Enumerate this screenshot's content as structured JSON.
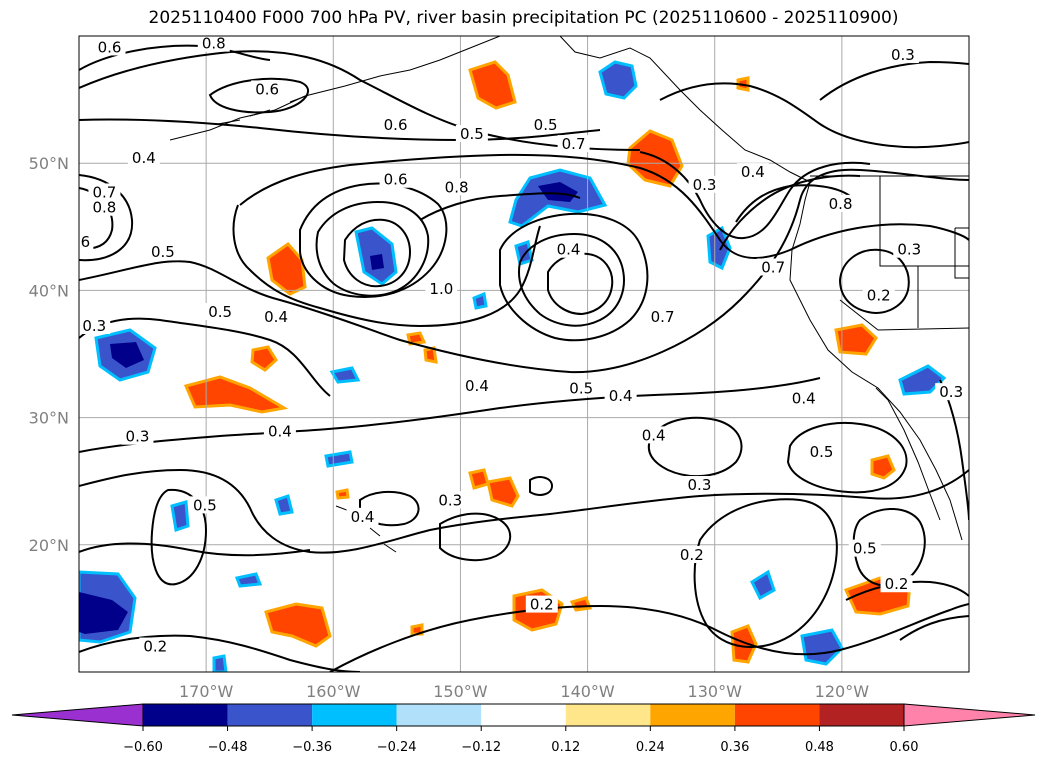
{
  "title": "2025110400 F000 700 hPa PV, river basin precipitation PC (2025110600 - 2025110900)",
  "map": {
    "lon_range": [
      -180,
      -110
    ],
    "lat_range": [
      10,
      60
    ],
    "lon_ticks": [
      {
        "value": -170,
        "label": "170°W"
      },
      {
        "value": -160,
        "label": "160°W"
      },
      {
        "value": -150,
        "label": "150°W"
      },
      {
        "value": -140,
        "label": "140°W"
      },
      {
        "value": -130,
        "label": "130°W"
      },
      {
        "value": -120,
        "label": "120°W"
      }
    ],
    "lat_ticks": [
      {
        "value": 50,
        "label": "50°N"
      },
      {
        "value": 40,
        "label": "40°N"
      },
      {
        "value": 30,
        "label": "30°N"
      },
      {
        "value": 20,
        "label": "20°N"
      }
    ],
    "grid": true,
    "contour_labels": [
      {
        "text": "0.6",
        "lon": -177.6,
        "lat": 59.1
      },
      {
        "text": "0.8",
        "lon": -169.4,
        "lat": 59.4
      },
      {
        "text": "0.6",
        "lon": -165.2,
        "lat": 55.8
      },
      {
        "text": "0.6",
        "lon": -155.1,
        "lat": 53.0
      },
      {
        "text": "0.5",
        "lon": -149.1,
        "lat": 52.3
      },
      {
        "text": "0.5",
        "lon": -143.3,
        "lat": 53.0
      },
      {
        "text": "0.7",
        "lon": -141.1,
        "lat": 51.5
      },
      {
        "text": "0.3",
        "lon": -115.2,
        "lat": 58.5
      },
      {
        "text": "0.4",
        "lon": -174.9,
        "lat": 50.4
      },
      {
        "text": "0.6",
        "lon": -155.1,
        "lat": 48.7
      },
      {
        "text": "0.8",
        "lon": -150.3,
        "lat": 48.1
      },
      {
        "text": "0.7",
        "lon": -178.0,
        "lat": 47.7
      },
      {
        "text": "0.8",
        "lon": -178.0,
        "lat": 46.5
      },
      {
        "text": "0.3",
        "lon": -130.8,
        "lat": 48.3
      },
      {
        "text": "0.4",
        "lon": -127.0,
        "lat": 49.3
      },
      {
        "text": "0.8",
        "lon": -120.1,
        "lat": 46.8
      },
      {
        "text": "6",
        "lon": -179.5,
        "lat": 43.8
      },
      {
        "text": "0.5",
        "lon": -173.4,
        "lat": 43.0
      },
      {
        "text": "0.4",
        "lon": -141.5,
        "lat": 43.2
      },
      {
        "text": "0.7",
        "lon": -125.4,
        "lat": 41.8
      },
      {
        "text": "0.3",
        "lon": -114.7,
        "lat": 43.2
      },
      {
        "text": "1.0",
        "lon": -151.5,
        "lat": 40.1
      },
      {
        "text": "0.2",
        "lon": -117.1,
        "lat": 39.6
      },
      {
        "text": "0.5",
        "lon": -168.9,
        "lat": 38.3
      },
      {
        "text": "0.4",
        "lon": -164.5,
        "lat": 37.9
      },
      {
        "text": "0.7",
        "lon": -134.1,
        "lat": 37.9
      },
      {
        "text": "0.3",
        "lon": -178.8,
        "lat": 37.2
      },
      {
        "text": "0.3",
        "lon": -111.4,
        "lat": 32.0
      },
      {
        "text": "0.4",
        "lon": -148.7,
        "lat": 32.5
      },
      {
        "text": "0.5",
        "lon": -140.5,
        "lat": 32.3
      },
      {
        "text": "0.4",
        "lon": -137.4,
        "lat": 31.7
      },
      {
        "text": "0.4",
        "lon": -123.0,
        "lat": 31.5
      },
      {
        "text": "0.3",
        "lon": -175.4,
        "lat": 28.5
      },
      {
        "text": "0.4",
        "lon": -164.2,
        "lat": 28.9
      },
      {
        "text": "0.4",
        "lon": -134.8,
        "lat": 28.6
      },
      {
        "text": "0.5",
        "lon": -121.6,
        "lat": 27.3
      },
      {
        "text": "0.3",
        "lon": -150.8,
        "lat": 23.5
      },
      {
        "text": "0.3",
        "lon": -131.2,
        "lat": 24.7
      },
      {
        "text": "0.5",
        "lon": -170.1,
        "lat": 23.1
      },
      {
        "text": "0.4",
        "lon": -157.7,
        "lat": 22.2
      },
      {
        "text": "0.2",
        "lon": -131.8,
        "lat": 19.2
      },
      {
        "text": "0.5",
        "lon": -118.2,
        "lat": 19.7
      },
      {
        "text": "0.2",
        "lon": -115.7,
        "lat": 16.9
      },
      {
        "text": "0.2",
        "lon": -143.6,
        "lat": 15.3
      },
      {
        "text": "0.2",
        "lon": -174.0,
        "lat": 12.0
      }
    ]
  },
  "colorbar": {
    "ticks": [
      "−0.60",
      "−0.48",
      "−0.36",
      "−0.24",
      "−0.12",
      "0.12",
      "0.24",
      "0.36",
      "0.48",
      "0.60"
    ],
    "colors": [
      "#9b30d0",
      "#00008b",
      "#3a55cc",
      "#00bfff",
      "#b0e0fa",
      "#ffffff",
      "#ffe68a",
      "#ffa500",
      "#ff4500",
      "#b22222",
      "#ff82ab"
    ]
  }
}
